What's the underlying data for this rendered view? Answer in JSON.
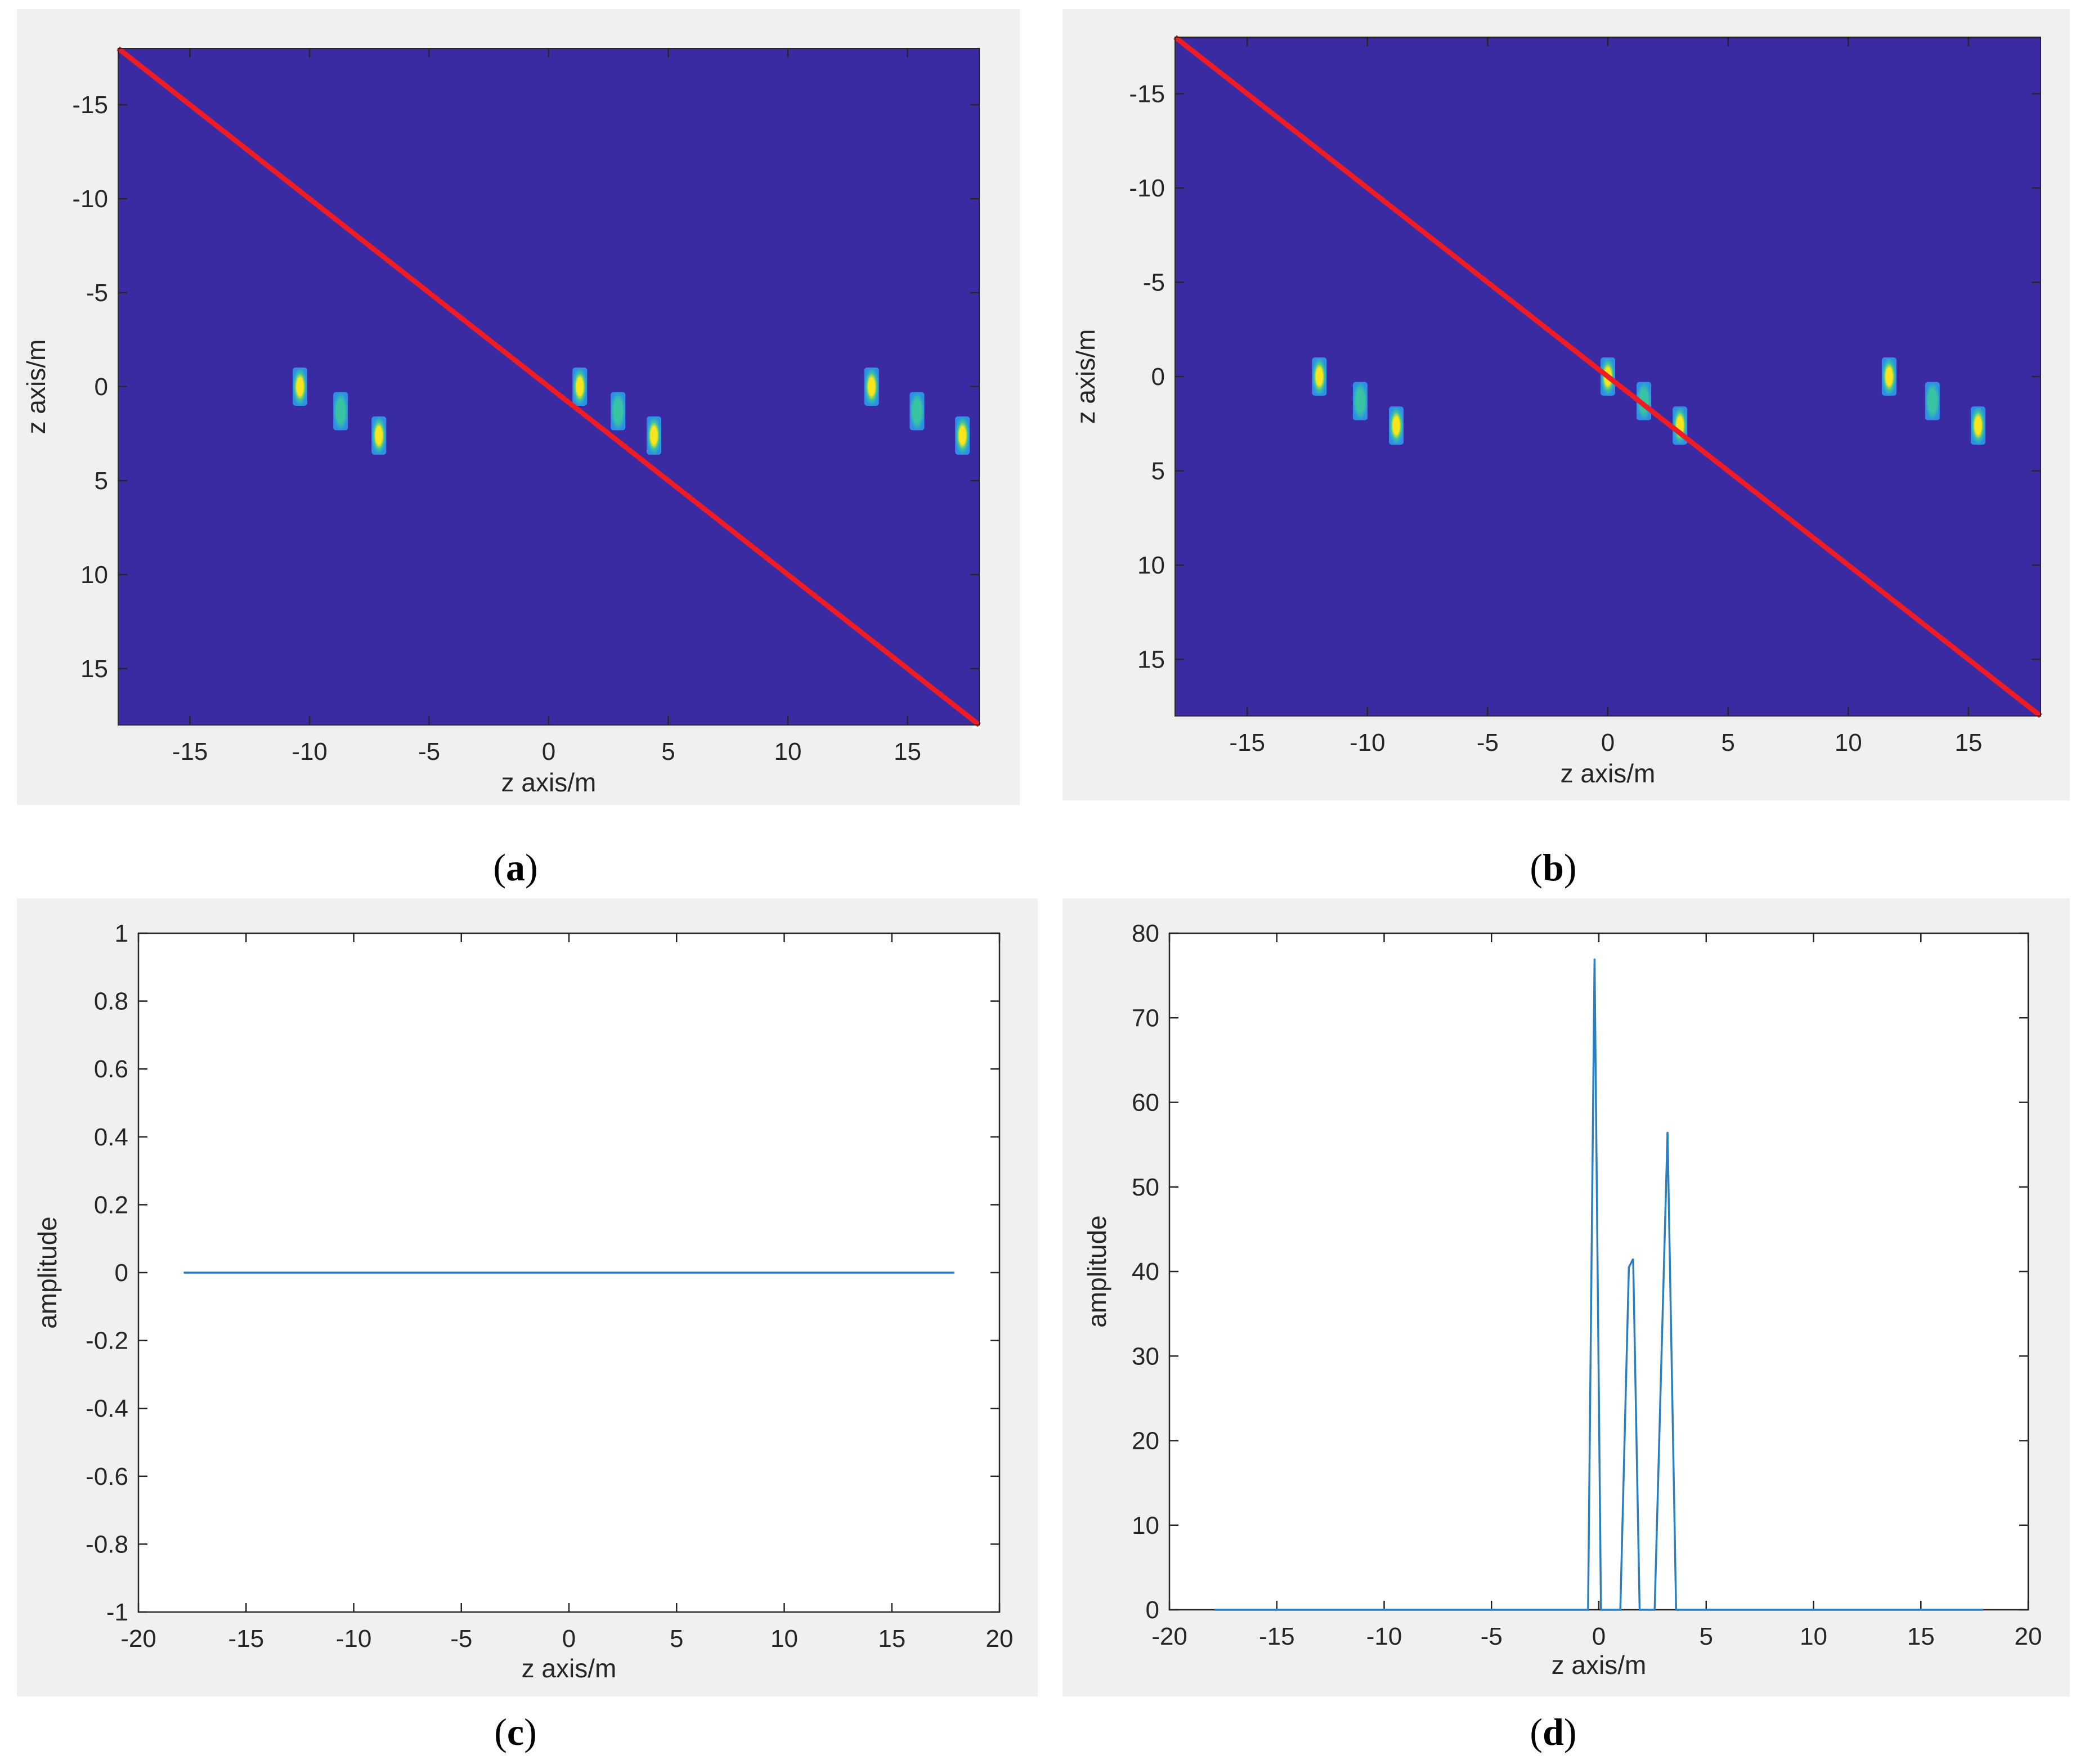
{
  "captions": [
    "a",
    "b",
    "c",
    "d"
  ],
  "colors": {
    "background": "#3b2ba2",
    "red_line": "#ee1c24",
    "blob_core": "#f7e51d",
    "blob_mid": "#38c3a3",
    "blob_edge": "#2d90e6",
    "line_series": "#2a7fc1",
    "panel_bg": "#f0f0f0"
  },
  "chart_data": [
    {
      "type": "heatmap",
      "panel": "a",
      "xlabel": "z axis/m",
      "ylabel": "z axis/m",
      "xlim": [
        -18,
        18
      ],
      "ylim": [
        18,
        -18
      ],
      "y_reversed": true,
      "xticks": [
        -15,
        -10,
        -5,
        0,
        5,
        10,
        15
      ],
      "yticks": [
        -15,
        -10,
        -5,
        0,
        5,
        10,
        15
      ],
      "grid": false,
      "colormap": "parula",
      "line": {
        "color": "red",
        "x": [
          -18,
          18
        ],
        "y": [
          -18,
          18
        ]
      },
      "spots": [
        {
          "x": -10.4,
          "y": 0.0,
          "intensity": 1.0
        },
        {
          "x": -8.7,
          "y": 1.3,
          "intensity": 0.7
        },
        {
          "x": -7.1,
          "y": 2.6,
          "intensity": 0.8
        },
        {
          "x": 1.3,
          "y": 0.0,
          "intensity": 1.0
        },
        {
          "x": 2.9,
          "y": 1.3,
          "intensity": 0.7
        },
        {
          "x": 4.4,
          "y": 2.6,
          "intensity": 0.8
        },
        {
          "x": 13.5,
          "y": 0.0,
          "intensity": 1.0
        },
        {
          "x": 15.4,
          "y": 1.3,
          "intensity": 0.7
        },
        {
          "x": 17.3,
          "y": 2.6,
          "intensity": 0.9
        }
      ]
    },
    {
      "type": "heatmap",
      "panel": "b",
      "xlabel": "z axis/m",
      "ylabel": "z axis/m",
      "xlim": [
        -18,
        18
      ],
      "ylim": [
        18,
        -18
      ],
      "y_reversed": true,
      "xticks": [
        -15,
        -10,
        -5,
        0,
        5,
        10,
        15
      ],
      "yticks": [
        -15,
        -10,
        -5,
        0,
        5,
        10,
        15
      ],
      "grid": false,
      "colormap": "parula",
      "line": {
        "color": "red",
        "x": [
          -18,
          18
        ],
        "y": [
          -18,
          18
        ]
      },
      "spots": [
        {
          "x": -12.0,
          "y": 0.0,
          "intensity": 1.0
        },
        {
          "x": -10.3,
          "y": 1.3,
          "intensity": 0.7
        },
        {
          "x": -8.8,
          "y": 2.6,
          "intensity": 0.8
        },
        {
          "x": 0.0,
          "y": 0.0,
          "intensity": 1.0
        },
        {
          "x": 1.5,
          "y": 1.3,
          "intensity": 0.7
        },
        {
          "x": 3.0,
          "y": 2.6,
          "intensity": 0.8
        },
        {
          "x": 11.7,
          "y": 0.0,
          "intensity": 1.0
        },
        {
          "x": 13.5,
          "y": 1.3,
          "intensity": 0.7
        },
        {
          "x": 15.4,
          "y": 2.6,
          "intensity": 0.8
        }
      ]
    },
    {
      "type": "line",
      "panel": "c",
      "xlabel": "z axis/m",
      "ylabel": "amplitude",
      "xlim": [
        -20,
        20
      ],
      "ylim": [
        -1,
        1
      ],
      "xticks": [
        -20,
        -15,
        -10,
        -5,
        0,
        5,
        10,
        15,
        20
      ],
      "yticks": [
        -1,
        -0.8,
        -0.6,
        -0.4,
        -0.2,
        0,
        0.2,
        0.4,
        0.6,
        0.8,
        1
      ],
      "grid": false,
      "series": [
        {
          "x": [
            -17.9,
            17.9
          ],
          "y": [
            0,
            0
          ]
        }
      ]
    },
    {
      "type": "line",
      "panel": "d",
      "xlabel": "z axis/m",
      "ylabel": "amplitude",
      "xlim": [
        -20,
        20
      ],
      "ylim": [
        0,
        80
      ],
      "xticks": [
        -20,
        -15,
        -10,
        -5,
        0,
        5,
        10,
        15,
        20
      ],
      "yticks": [
        0,
        10,
        20,
        30,
        40,
        50,
        60,
        70,
        80
      ],
      "grid": false,
      "series": [
        {
          "x": [
            -17.9,
            -0.5,
            -0.2,
            0.1,
            1.0,
            1.4,
            1.6,
            1.9,
            2.6,
            3.2,
            3.6,
            17.9
          ],
          "y": [
            0,
            0,
            77,
            0,
            0,
            40.5,
            41.5,
            0,
            0,
            56.5,
            0,
            0
          ]
        }
      ]
    }
  ]
}
